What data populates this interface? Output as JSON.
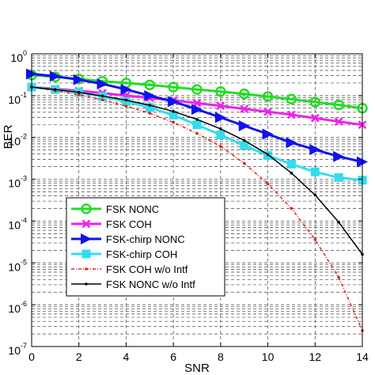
{
  "chart_data": {
    "type": "line",
    "xlabel": "SNR",
    "ylabel": "BER",
    "xlim": [
      0,
      14
    ],
    "ylim": [
      1e-07,
      1
    ],
    "yscale": "log",
    "grid": true,
    "legend_position": "lower-left",
    "x_ticks": [
      "0",
      "2",
      "4",
      "6",
      "8",
      "10",
      "12",
      "14"
    ],
    "y_ticks": [
      {
        "base": "10",
        "exp": "0",
        "value": 1
      },
      {
        "base": "10",
        "exp": "-1",
        "value": 0.1
      },
      {
        "base": "10",
        "exp": "-2",
        "value": 0.01
      },
      {
        "base": "10",
        "exp": "-3",
        "value": 0.001
      },
      {
        "base": "10",
        "exp": "-4",
        "value": 0.0001
      },
      {
        "base": "10",
        "exp": "-5",
        "value": 1e-05
      },
      {
        "base": "10",
        "exp": "-6",
        "value": 1e-06
      },
      {
        "base": "10",
        "exp": "-7",
        "value": 1e-07
      }
    ],
    "series": [
      {
        "name": "FSK NONC",
        "color": "#22dd22",
        "marker": "circle",
        "line_style": "solid",
        "x": [
          0,
          1,
          2,
          3,
          4,
          5,
          6,
          7,
          8,
          9,
          10,
          11,
          12,
          13,
          14
        ],
        "y": [
          0.31,
          0.28,
          0.25,
          0.22,
          0.2,
          0.18,
          0.16,
          0.14,
          0.125,
          0.11,
          0.095,
          0.082,
          0.07,
          0.06,
          0.05
        ]
      },
      {
        "name": "FSK COH",
        "color": "#ee22ee",
        "marker": "x",
        "line_style": "solid",
        "x": [
          0,
          1,
          2,
          3,
          4,
          5,
          6,
          7,
          8,
          9,
          10,
          11,
          12,
          13,
          14
        ],
        "y": [
          0.16,
          0.145,
          0.13,
          0.115,
          0.1,
          0.088,
          0.077,
          0.066,
          0.057,
          0.048,
          0.041,
          0.035,
          0.029,
          0.024,
          0.02
        ]
      },
      {
        "name": "FSK-chirp NONC",
        "color": "#1111ee",
        "marker": "triangle-right",
        "line_style": "solid",
        "x": [
          0,
          1,
          2,
          3,
          4,
          5,
          6,
          7,
          8,
          9,
          10,
          11,
          12,
          13,
          14
        ],
        "y": [
          0.33,
          0.29,
          0.24,
          0.19,
          0.14,
          0.1,
          0.072,
          0.047,
          0.03,
          0.019,
          0.012,
          0.0075,
          0.0051,
          0.0035,
          0.0026
        ]
      },
      {
        "name": "FSK-chirp COH",
        "color": "#33ddee",
        "marker": "square",
        "line_style": "solid",
        "x": [
          0,
          1,
          2,
          3,
          4,
          5,
          6,
          7,
          8,
          9,
          10,
          11,
          12,
          13,
          14
        ],
        "y": [
          0.16,
          0.14,
          0.12,
          0.095,
          0.072,
          0.052,
          0.034,
          0.02,
          0.0115,
          0.0064,
          0.0037,
          0.0023,
          0.0015,
          0.0011,
          0.00095
        ]
      },
      {
        "name": "FSK COH w/o Intf",
        "color": "#dd2222",
        "marker": "dot",
        "line_style": "dashdot",
        "x": [
          0,
          1,
          2,
          3,
          4,
          5,
          6,
          7,
          8,
          9,
          10,
          11,
          12,
          13,
          14
        ],
        "y": [
          0.16,
          0.13,
          0.105,
          0.079,
          0.056,
          0.038,
          0.023,
          0.0125,
          0.0061,
          0.0024,
          0.00078,
          0.0002,
          3.6e-05,
          4.5e-06,
          2.4e-07
        ]
      },
      {
        "name": "FSK NONC w/o Intf",
        "color": "#000000",
        "marker": "dot",
        "line_style": "solid",
        "x": [
          0,
          1,
          2,
          3,
          4,
          5,
          6,
          7,
          8,
          9,
          10,
          11,
          12,
          13,
          14
        ],
        "y": [
          0.16,
          0.14,
          0.12,
          0.098,
          0.078,
          0.059,
          0.042,
          0.027,
          0.016,
          0.0085,
          0.0039,
          0.0014,
          0.00042,
          9.4e-05,
          1.6e-05
        ]
      }
    ]
  }
}
